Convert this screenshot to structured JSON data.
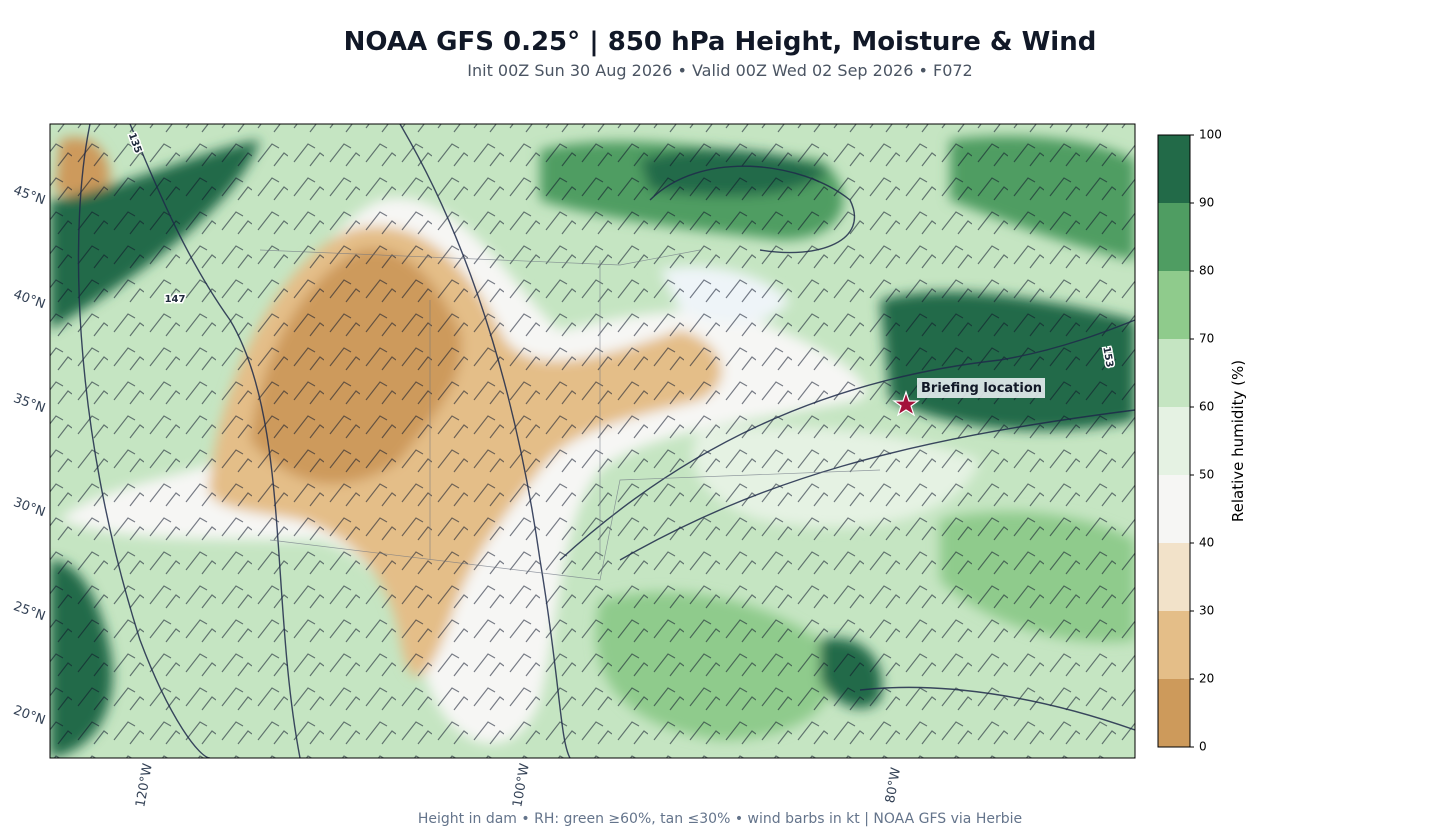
{
  "header": {
    "title": "NOAA GFS 0.25°  |  850 hPa Height, Moisture & Wind",
    "subtitle": "Init 00Z Sun 30 Aug 2026  •  Valid 00Z Wed 02 Sep 2026  •  F072"
  },
  "map": {
    "lat_labels": [
      "45°N",
      "40°N",
      "35°N",
      "30°N",
      "25°N",
      "20°N"
    ],
    "lon_labels": [
      "120°W",
      "100°W",
      "80°W"
    ],
    "contour_labels": [
      "135",
      "147",
      "153"
    ],
    "annotation": "Briefing location"
  },
  "colorbar": {
    "label": "Relative humidity (%)",
    "boundaries": [
      0,
      20,
      30,
      40,
      50,
      60,
      70,
      80,
      90,
      100
    ],
    "colors": [
      "#cd9a5b",
      "#e4be88",
      "#f2e2c9",
      "#f6f6f4",
      "#e5f2e3",
      "#c5e5c2",
      "#8fcb8c",
      "#4f9d62",
      "#226a48"
    ]
  },
  "footer": "Height in dam • RH: green ≥60%, tan ≤30% • wind barbs in kt  |  NOAA GFS via Herbie"
}
